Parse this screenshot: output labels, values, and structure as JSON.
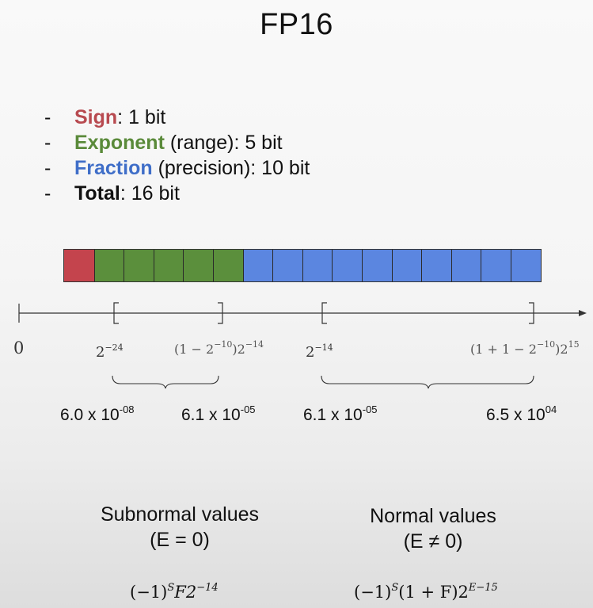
{
  "title": "FP16",
  "bullets": [
    {
      "dash": "-",
      "label": "Sign",
      "rest": ": 1 bit"
    },
    {
      "dash": "-",
      "label": "Exponent",
      "rest": " (range): 5 bit"
    },
    {
      "dash": "-",
      "label": "Fraction",
      "rest": " (precision): 10 bit"
    },
    {
      "dash": "-",
      "label": "Total",
      "rest": ": 16 bit"
    }
  ],
  "bit_layout": {
    "sign_bits": 1,
    "exponent_bits": 5,
    "fraction_bits": 10,
    "colors": {
      "sign": "#c4444d",
      "exponent": "#5b8f3c",
      "fraction": "#5b86e0"
    }
  },
  "axis": {
    "zero": "0",
    "sub_min": {
      "base": "2",
      "exp": "−24"
    },
    "sub_max": {
      "pre": "(1 − 2",
      "pre_exp": "−10",
      "mid": ")2",
      "exp": "−14"
    },
    "norm_min": {
      "base": "2",
      "exp": "−14"
    },
    "norm_max": {
      "pre": "(1 + 1 − 2",
      "pre_exp": "−10",
      "mid": ")2",
      "exp": "15"
    }
  },
  "decimals": {
    "sub_min": {
      "mant": "6.0 x 10",
      "exp": "-08"
    },
    "sub_max": {
      "mant": "6.1 x 10",
      "exp": "-05"
    },
    "norm_min": {
      "mant": "6.1 x 10",
      "exp": "-05"
    },
    "norm_max": {
      "mant": "6.5 x 10",
      "exp": "04"
    }
  },
  "subnormal": {
    "title": "Subnormal values",
    "cond": "(E = 0)"
  },
  "normal": {
    "title": "Normal values",
    "cond": "(E ≠ 0)"
  },
  "formulas": {
    "subnormal": {
      "a": "(−1)",
      "a_exp": "S",
      "b": "F2",
      "b_exp": "−14"
    },
    "normal": {
      "a": "(−1)",
      "a_exp": "S",
      "b": "(1 + F)2",
      "b_exp": "E−15"
    }
  }
}
